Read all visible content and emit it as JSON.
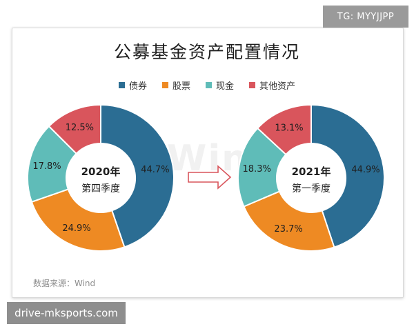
{
  "header_tag": "TG: MYYJJPP",
  "footer_tag": "drive-mksports.com",
  "watermark": "Wind",
  "source": "数据来源：Wind",
  "colors": {
    "bond": "#2b6d93",
    "stock": "#ee8a23",
    "cash": "#5fbcb8",
    "other": "#d9555c"
  },
  "chart_data": {
    "type": "pie",
    "title": "公募基金资产配置情况",
    "legend": [
      "债券",
      "股票",
      "现金",
      "其他资产"
    ],
    "legend_position": "top",
    "charts": [
      {
        "center_label_line1": "2020年",
        "center_label_line2": "第四季度",
        "slices": [
          {
            "label": "债券",
            "value": 44.7,
            "display": "44.7%"
          },
          {
            "label": "股票",
            "value": 24.9,
            "display": "24.9%"
          },
          {
            "label": "现金",
            "value": 17.8,
            "display": "17.8%"
          },
          {
            "label": "其他资产",
            "value": 12.5,
            "display": "12.5%"
          }
        ]
      },
      {
        "center_label_line1": "2021年",
        "center_label_line2": "第一季度",
        "slices": [
          {
            "label": "债券",
            "value": 44.9,
            "display": "44.9%"
          },
          {
            "label": "股票",
            "value": 23.7,
            "display": "23.7%"
          },
          {
            "label": "现金",
            "value": 18.3,
            "display": "18.3%"
          },
          {
            "label": "其他资产",
            "value": 13.1,
            "display": "13.1%"
          }
        ]
      }
    ]
  }
}
